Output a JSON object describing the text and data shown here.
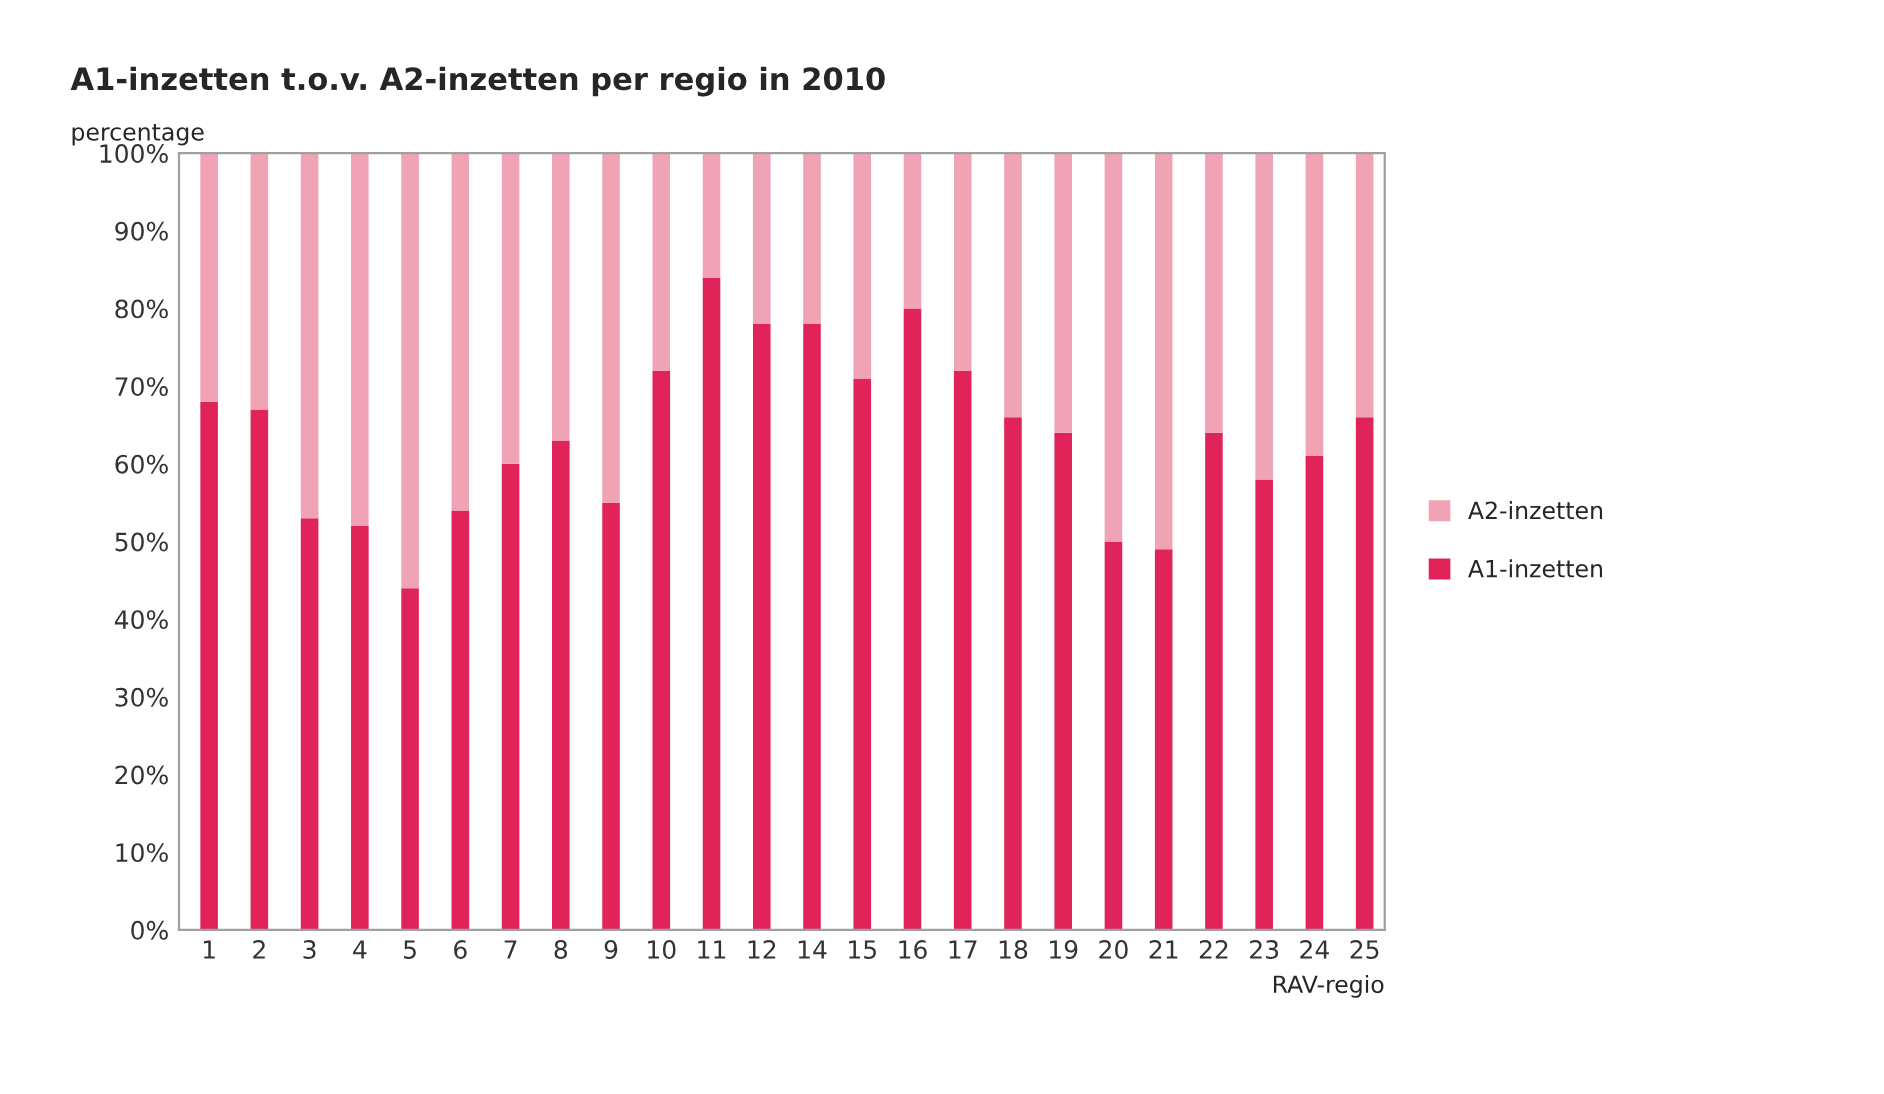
{
  "chart_data": {
    "type": "bar",
    "title": "A1-inzetten t.o.v. A2-inzetten per regio in 2010",
    "ylabel": "percentage",
    "xlabel": "RAV-regio",
    "categories": [
      "1",
      "2",
      "3",
      "4",
      "5",
      "6",
      "7",
      "8",
      "9",
      "10",
      "11",
      "12",
      "14",
      "15",
      "16",
      "17",
      "18",
      "19",
      "20",
      "21",
      "22",
      "23",
      "24",
      "25"
    ],
    "stacked": true,
    "series": [
      {
        "name": "A1-inzetten",
        "color": "#e0245a",
        "values": [
          68,
          67,
          53,
          52,
          44,
          54,
          60,
          63,
          55,
          72,
          84,
          78,
          78,
          71,
          80,
          72,
          66,
          64,
          50,
          49,
          64,
          58,
          61,
          66
        ]
      },
      {
        "name": "A2-inzetten",
        "color": "#f0a3b5",
        "values": [
          32,
          33,
          47,
          48,
          56,
          46,
          40,
          37,
          45,
          28,
          16,
          22,
          22,
          29,
          20,
          28,
          34,
          36,
          50,
          51,
          36,
          42,
          39,
          34
        ]
      }
    ],
    "ylim": [
      0,
      100
    ],
    "yticks": [
      {
        "value": 0,
        "label": "0%"
      },
      {
        "value": 10,
        "label": "10%"
      },
      {
        "value": 20,
        "label": "20%"
      },
      {
        "value": 30,
        "label": "30%"
      },
      {
        "value": 40,
        "label": "40%"
      },
      {
        "value": 50,
        "label": "50%"
      },
      {
        "value": 60,
        "label": "60%"
      },
      {
        "value": 70,
        "label": "70%"
      },
      {
        "value": 80,
        "label": "80%"
      },
      {
        "value": 90,
        "label": "90%"
      },
      {
        "value": 100,
        "label": "100%"
      }
    ],
    "grid": false,
    "legend": "right"
  }
}
